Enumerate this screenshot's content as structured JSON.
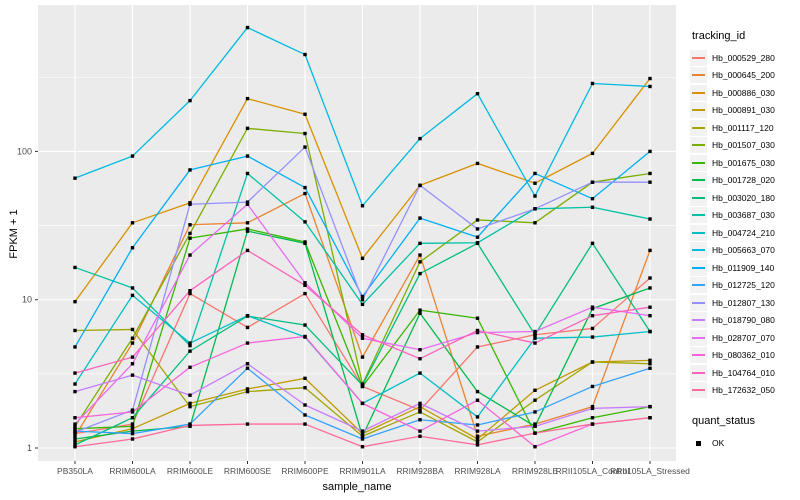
{
  "chart_data": {
    "type": "line",
    "title": "",
    "xlabel": "sample_name",
    "ylabel": "FPKM + 1",
    "yscale": "log10",
    "ylim": [
      0.95,
      950
    ],
    "yticks": [
      1,
      10,
      100
    ],
    "ytick_labels": [
      "1",
      "10",
      "100"
    ],
    "minor_gridlines": [
      3.162,
      31.62,
      316.2
    ],
    "grid": "white on gray panel",
    "panel_bg": "#EBEBEB",
    "grid_color": "#FFFFFF",
    "marker": "small black square",
    "marker_color": "#000000",
    "legend_position": "right",
    "categories": [
      "PB350LA",
      "RRIM600LA",
      "RRIM600LE",
      "RRIM600SE",
      "RRIM600PE",
      "RRIM901LA",
      "RRIM928BA",
      "RRIM928LA",
      "RRIM928LE",
      "RRII105LA_Control",
      "RRII105LA_Stressed"
    ],
    "series": [
      {
        "name": "Hb_000529_280",
        "color": "#F8766D",
        "values": [
          1.25,
          1.45,
          11,
          6.5,
          11,
          2.6,
          1.8,
          4.8,
          5.8,
          6.4,
          14
        ]
      },
      {
        "name": "Hb_000645_200",
        "color": "#EA8331",
        "values": [
          1.2,
          5.1,
          32,
          33,
          52,
          4.1,
          20,
          1.2,
          1.45,
          1.9,
          21.5
        ]
      },
      {
        "name": "Hb_000886_030",
        "color": "#D89000",
        "values": [
          9.7,
          33,
          45,
          227,
          178,
          19,
          59,
          83,
          61,
          97,
          310
        ]
      },
      {
        "name": "Hb_000891_030",
        "color": "#C09B00",
        "values": [
          1.1,
          1.35,
          2.0,
          2.5,
          2.95,
          1.25,
          1.9,
          1.15,
          2.45,
          3.8,
          3.9
        ]
      },
      {
        "name": "Hb_001117_120",
        "color": "#A3A500",
        "values": [
          6.2,
          6.3,
          1.9,
          2.4,
          2.55,
          1.2,
          1.75,
          1.1,
          2.1,
          3.8,
          3.7
        ]
      },
      {
        "name": "Hb_001507_030",
        "color": "#7CAE00",
        "values": [
          1.4,
          5.5,
          28,
          143,
          132,
          2.7,
          18,
          34.5,
          33,
          62,
          71
        ]
      },
      {
        "name": "Hb_001675_030",
        "color": "#39B600",
        "values": [
          1.35,
          1.4,
          26,
          30,
          24.5,
          2.6,
          8.5,
          7.5,
          1.26,
          1.6,
          1.9
        ]
      },
      {
        "name": "Hb_001728_020",
        "color": "#00BB4E",
        "values": [
          1.15,
          1.3,
          1.4,
          29,
          24,
          1.2,
          8.1,
          2.4,
          1.4,
          8.7,
          12
        ]
      },
      {
        "name": "Hb_003020_180",
        "color": "#00BF7D",
        "values": [
          1.05,
          1.6,
          4.5,
          7.75,
          6.75,
          2.65,
          15,
          24,
          5.8,
          24,
          6.1
        ]
      },
      {
        "name": "Hb_003687_030",
        "color": "#00C1A3",
        "values": [
          16.5,
          12,
          4.9,
          71,
          33.5,
          9.3,
          24,
          24.2,
          41,
          42,
          35
        ]
      },
      {
        "name": "Hb_004724_210",
        "color": "#00BFC4",
        "values": [
          2.7,
          10.7,
          5.1,
          7.8,
          5.6,
          2.0,
          3.2,
          1.62,
          5.5,
          5.6,
          6.1
        ]
      },
      {
        "name": "Hb_005663_070",
        "color": "#00BAE0",
        "values": [
          66,
          93,
          220,
          684,
          450,
          43,
          122,
          245,
          50,
          287,
          274
        ]
      },
      {
        "name": "Hb_011909_140",
        "color": "#00B0F6",
        "values": [
          4.8,
          22.4,
          75,
          93,
          57,
          10.5,
          35.5,
          26.4,
          71,
          48,
          100
        ]
      },
      {
        "name": "Hb_012725_120",
        "color": "#35A2FF",
        "values": [
          1.3,
          1.25,
          1.45,
          3.45,
          1.67,
          1.15,
          1.55,
          1.43,
          1.75,
          2.6,
          3.45
        ]
      },
      {
        "name": "Hb_012807_130",
        "color": "#9590FF",
        "values": [
          1.28,
          1.8,
          44,
          45.5,
          107,
          10,
          59,
          30,
          41,
          62,
          62
        ]
      },
      {
        "name": "Hb_018790_080",
        "color": "#C77CFF",
        "values": [
          2.4,
          3.1,
          2.27,
          3.7,
          1.95,
          1.3,
          2.0,
          1.3,
          1.4,
          1.85,
          1.9
        ]
      },
      {
        "name": "Hb_028707_070",
        "color": "#E76BF3",
        "values": [
          1.45,
          3.7,
          20,
          44,
          13,
          5.5,
          4.6,
          6.0,
          6.1,
          8.9,
          7.8
        ]
      },
      {
        "name": "Hb_080362_010",
        "color": "#FA62DB",
        "values": [
          1.6,
          1.75,
          3.5,
          5.1,
          5.65,
          2.0,
          1.3,
          2.1,
          1.02,
          1.45,
          1.6
        ]
      },
      {
        "name": "Hb_104764_010",
        "color": "#FF62BC",
        "values": [
          3.2,
          4.1,
          11.5,
          21.5,
          12.5,
          5.8,
          4.0,
          6.2,
          5.1,
          7.8,
          8.9
        ]
      },
      {
        "name": "Hb_172632_050",
        "color": "#FF6A98",
        "values": [
          1.02,
          1.15,
          1.42,
          1.45,
          1.45,
          1.02,
          1.2,
          1.05,
          1.26,
          1.45,
          1.6
        ]
      }
    ],
    "legend": {
      "color_title": "tracking_id",
      "shape_title": "quant_status",
      "shape_items": [
        {
          "label": "OK",
          "marker": "black square"
        }
      ]
    }
  }
}
